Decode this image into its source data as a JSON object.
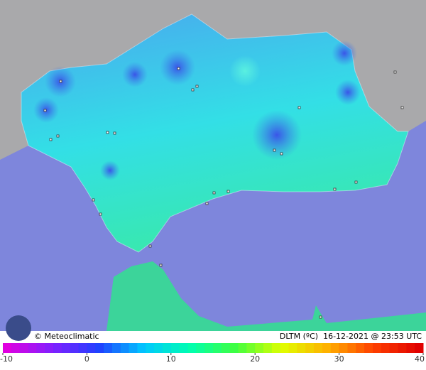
{
  "footer": {
    "credit": "© Meteoclimatic",
    "caption": "DLTM (ºC)  16-12-2021 @ 23:53 UTC"
  },
  "colorbar": {
    "lim": [
      -10,
      40
    ],
    "ticks": [
      -10,
      0,
      10,
      20,
      30,
      40
    ],
    "colors": [
      "#e000e0",
      "#8020ff",
      "#2040ff",
      "#00c8ff",
      "#00ffb0",
      "#40ff40",
      "#e0ff00",
      "#ffb000",
      "#ff4000",
      "#e00000"
    ]
  }
}
